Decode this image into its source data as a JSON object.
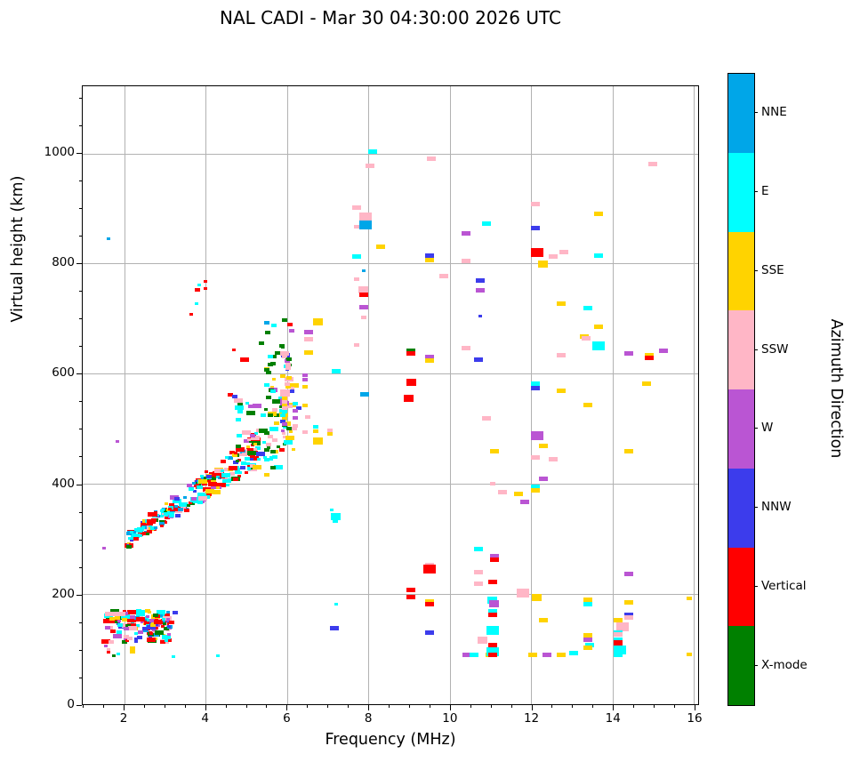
{
  "header": {
    "title": "NAL CADI - Mar 30 04:30:00 2026 UTC"
  },
  "chart_data": {
    "type": "scatter",
    "title": "NAL CADI - Mar 30 04:30:00 2026 UTC",
    "xlabel": "Frequency (MHz)",
    "ylabel": "Virtual height (km)",
    "xlim": [
      0.975,
      16.11
    ],
    "ylim": [
      0,
      1122
    ],
    "x_major_ticks": [
      2,
      4,
      6,
      8,
      10,
      12,
      14,
      16
    ],
    "x_minor_step": 0.5,
    "y_major_ticks": [
      0,
      200,
      400,
      600,
      800,
      1000
    ],
    "y_minor_step": 50,
    "grid": true,
    "grid_color": "#b2b2b2",
    "legend_position": "right-colorbar",
    "colorbar": {
      "title": "Azimuth Direction",
      "labels": [
        "NNE",
        "E",
        "SSE",
        "SSW",
        "W",
        "NNW",
        "Vertical",
        "X-mode"
      ],
      "colors": [
        "#00A6E8",
        "#00FFFF",
        "#FFD300",
        "#FFB6C6",
        "#BA55D3",
        "#3C3CEC",
        "#FF0000",
        "#008000"
      ]
    },
    "categories": [
      "NNE",
      "E",
      "SSE",
      "SSW",
      "W",
      "NNW",
      "Vertical",
      "X-mode"
    ],
    "colors": [
      "#00A6E8",
      "#00FFFF",
      "#FFD300",
      "#FFB6C6",
      "#BA55D3",
      "#3C3CEC",
      "#FF0000",
      "#008000"
    ],
    "point_sizes": {
      "1": [
        4,
        3
      ],
      "2": [
        6,
        4
      ],
      "3": [
        10,
        5
      ],
      "4": [
        11,
        8
      ],
      "5": [
        14,
        10
      ]
    },
    "points": [
      [
        1.5,
        284,
        4,
        1
      ],
      [
        1.55,
        105,
        4,
        1
      ],
      [
        1.6,
        845,
        0,
        1
      ],
      [
        1.62,
        100,
        3,
        1
      ],
      [
        1.62,
        95,
        6,
        1
      ],
      [
        1.73,
        88,
        7,
        1
      ],
      [
        1.83,
        477,
        4,
        1
      ],
      [
        1.85,
        91,
        1,
        1
      ],
      [
        2.2,
        101,
        2,
        2
      ],
      [
        2.2,
        95,
        2,
        2
      ],
      [
        3.2,
        87,
        1,
        1
      ],
      [
        4.3,
        88,
        1,
        1
      ],
      [
        3.64,
        708,
        6,
        1
      ],
      [
        3.78,
        727,
        1,
        1
      ],
      [
        3.8,
        752,
        6,
        2
      ],
      [
        3.83,
        761,
        1,
        1
      ],
      [
        4.0,
        768,
        6,
        1
      ],
      [
        4.0,
        754,
        6,
        1
      ],
      [
        4.6,
        562,
        6,
        2
      ],
      [
        4.72,
        558,
        5,
        2
      ],
      [
        4.7,
        643,
        6,
        1
      ],
      [
        4.95,
        625,
        6,
        3
      ],
      [
        5.38,
        655,
        7,
        2
      ],
      [
        5.5,
        693,
        0,
        2
      ],
      [
        5.68,
        688,
        1,
        2
      ],
      [
        5.95,
        697,
        7,
        2
      ],
      [
        6.08,
        690,
        6,
        2
      ],
      [
        6.75,
        694,
        2,
        4
      ],
      [
        6.12,
        678,
        4,
        2
      ],
      [
        5.52,
        675,
        7,
        2
      ],
      [
        6.52,
        676,
        4,
        3
      ],
      [
        6.52,
        663,
        3,
        3
      ],
      [
        5.9,
        648,
        7,
        1
      ],
      [
        6.52,
        639,
        2,
        3
      ],
      [
        5.6,
        632,
        1,
        2
      ],
      [
        5.95,
        632,
        3,
        2
      ],
      [
        6.03,
        616,
        3,
        2
      ],
      [
        6.03,
        610,
        3,
        2
      ],
      [
        5.65,
        619,
        7,
        2
      ],
      [
        5.5,
        607,
        7,
        2
      ],
      [
        6.05,
        626,
        7,
        2
      ],
      [
        5.6,
        616,
        7,
        2
      ],
      [
        6.45,
        597,
        4,
        2
      ],
      [
        6.45,
        590,
        4,
        2
      ],
      [
        5.9,
        595,
        2,
        2
      ],
      [
        6.05,
        593,
        2,
        2
      ],
      [
        5.5,
        580,
        1,
        2
      ],
      [
        6.45,
        577,
        2,
        2
      ],
      [
        5.95,
        565,
        3,
        4
      ],
      [
        5.55,
        557,
        7,
        2
      ],
      [
        5.95,
        556,
        2,
        2
      ],
      [
        5.95,
        549,
        3,
        2
      ],
      [
        5.95,
        543,
        2,
        2
      ],
      [
        5.95,
        537,
        3,
        2
      ],
      [
        5.95,
        531,
        1,
        2
      ],
      [
        6.45,
        543,
        2,
        2
      ],
      [
        6.28,
        538,
        5,
        2
      ],
      [
        6.2,
        532,
        4,
        2
      ],
      [
        5.6,
        524,
        7,
        2
      ],
      [
        5.9,
        524,
        1,
        2
      ],
      [
        5.95,
        519,
        2,
        2
      ],
      [
        5.9,
        514,
        5,
        2
      ],
      [
        5.95,
        509,
        4,
        2
      ],
      [
        6.5,
        521,
        3,
        2
      ],
      [
        6.7,
        503,
        1,
        2
      ],
      [
        6.7,
        495,
        2,
        2
      ],
      [
        6.05,
        500,
        7,
        2
      ],
      [
        5.9,
        497,
        4,
        1
      ],
      [
        6.45,
        494,
        3,
        2
      ],
      [
        5.5,
        492,
        7,
        2
      ],
      [
        5.6,
        486,
        3,
        2
      ],
      [
        6.75,
        478,
        2,
        4
      ],
      [
        6.05,
        483,
        2,
        2
      ],
      [
        5.55,
        472,
        3,
        2
      ],
      [
        5.5,
        462,
        7,
        2
      ],
      [
        5.65,
        458,
        7,
        2
      ],
      [
        5.5,
        444,
        1,
        2
      ],
      [
        5.65,
        430,
        7,
        2
      ],
      [
        5.5,
        417,
        2,
        2
      ],
      [
        7.05,
        497,
        3,
        2
      ],
      [
        7.05,
        490,
        2,
        2
      ],
      [
        7.1,
        353,
        1,
        1
      ],
      [
        7.2,
        605,
        1,
        3
      ],
      [
        7.2,
        340,
        1,
        4
      ],
      [
        7.18,
        333,
        1,
        2
      ],
      [
        7.2,
        182,
        1,
        1
      ],
      [
        7.1,
        139,
        7,
        1
      ],
      [
        7.17,
        138,
        5,
        3
      ],
      [
        7.72,
        902,
        3,
        3
      ],
      [
        7.72,
        867,
        3,
        2
      ],
      [
        7.72,
        813,
        1,
        3
      ],
      [
        7.72,
        771,
        3,
        2
      ],
      [
        7.72,
        652,
        3,
        2
      ],
      [
        7.88,
        787,
        0,
        1
      ],
      [
        7.88,
        752,
        3,
        4
      ],
      [
        7.88,
        744,
        6,
        3
      ],
      [
        7.88,
        721,
        4,
        3
      ],
      [
        7.88,
        702,
        3,
        2
      ],
      [
        7.9,
        563,
        0,
        3
      ],
      [
        7.92,
        884,
        3,
        5
      ],
      [
        7.92,
        870,
        0,
        5
      ],
      [
        8.05,
        977,
        3,
        3
      ],
      [
        8.1,
        1003,
        1,
        3
      ],
      [
        8.3,
        830,
        2,
        3
      ],
      [
        9.0,
        556,
        6,
        4
      ],
      [
        9.05,
        641,
        7,
        3
      ],
      [
        9.05,
        637,
        6,
        3
      ],
      [
        9.05,
        585,
        6,
        4
      ],
      [
        9.05,
        208,
        6,
        3
      ],
      [
        9.05,
        194,
        6,
        3
      ],
      [
        9.5,
        630,
        4,
        3
      ],
      [
        9.5,
        624,
        2,
        3
      ],
      [
        9.5,
        253,
        3,
        3
      ],
      [
        9.5,
        245,
        6,
        5
      ],
      [
        9.5,
        186,
        2,
        3
      ],
      [
        9.5,
        181,
        6,
        3
      ],
      [
        9.5,
        130,
        5,
        3
      ],
      [
        9.5,
        815,
        5,
        3
      ],
      [
        9.5,
        807,
        2,
        3
      ],
      [
        9.55,
        990,
        3,
        3
      ],
      [
        9.85,
        778,
        3,
        3
      ],
      [
        10.4,
        855,
        4,
        3
      ],
      [
        10.4,
        804,
        3,
        3
      ],
      [
        10.4,
        647,
        3,
        3
      ],
      [
        10.42,
        90,
        4,
        3
      ],
      [
        10.6,
        90,
        1,
        3
      ],
      [
        10.7,
        281,
        1,
        3
      ],
      [
        10.7,
        240,
        3,
        3
      ],
      [
        10.7,
        219,
        3,
        3
      ],
      [
        10.7,
        625,
        5,
        3
      ],
      [
        10.75,
        770,
        5,
        3
      ],
      [
        10.75,
        751,
        4,
        3
      ],
      [
        10.75,
        704,
        5,
        1
      ],
      [
        10.8,
        116,
        3,
        4
      ],
      [
        10.9,
        873,
        1,
        3
      ],
      [
        10.9,
        519,
        3,
        3
      ],
      [
        11.0,
        90,
        2,
        3
      ],
      [
        11.05,
        400,
        3,
        2
      ],
      [
        11.05,
        222,
        6,
        3
      ],
      [
        11.05,
        189,
        1,
        4
      ],
      [
        11.1,
        182,
        4,
        4
      ],
      [
        11.05,
        168,
        1,
        3
      ],
      [
        11.05,
        163,
        6,
        3
      ],
      [
        11.05,
        134,
        1,
        5
      ],
      [
        11.05,
        108,
        6,
        3
      ],
      [
        11.05,
        95,
        1,
        5
      ],
      [
        11.05,
        89,
        6,
        3
      ],
      [
        11.1,
        459,
        2,
        3
      ],
      [
        11.1,
        268,
        4,
        3
      ],
      [
        11.1,
        263,
        6,
        3
      ],
      [
        11.3,
        385,
        3,
        3
      ],
      [
        11.7,
        382,
        2,
        3
      ],
      [
        11.8,
        202,
        3,
        5
      ],
      [
        11.85,
        367,
        4,
        3
      ],
      [
        12.05,
        90,
        2,
        3
      ],
      [
        12.1,
        908,
        3,
        3
      ],
      [
        12.1,
        865,
        5,
        3
      ],
      [
        12.1,
        582,
        1,
        3
      ],
      [
        12.1,
        574,
        5,
        3
      ],
      [
        12.1,
        448,
        3,
        3
      ],
      [
        12.1,
        394,
        1,
        3
      ],
      [
        12.1,
        389,
        2,
        3
      ],
      [
        12.15,
        820,
        6,
        5
      ],
      [
        12.15,
        488,
        4,
        5
      ],
      [
        12.15,
        193,
        2,
        4
      ],
      [
        12.3,
        799,
        2,
        4
      ],
      [
        12.3,
        469,
        2,
        3
      ],
      [
        12.3,
        410,
        4,
        3
      ],
      [
        12.3,
        152,
        2,
        3
      ],
      [
        12.4,
        90,
        4,
        3
      ],
      [
        12.55,
        813,
        3,
        3
      ],
      [
        12.55,
        445,
        3,
        3
      ],
      [
        12.75,
        727,
        2,
        3
      ],
      [
        12.75,
        633,
        3,
        3
      ],
      [
        12.75,
        569,
        2,
        3
      ],
      [
        12.75,
        89,
        2,
        3
      ],
      [
        12.8,
        821,
        3,
        3
      ],
      [
        13.05,
        93,
        1,
        3
      ],
      [
        13.3,
        668,
        2,
        3
      ],
      [
        13.35,
        664,
        3,
        3
      ],
      [
        13.4,
        720,
        1,
        3
      ],
      [
        13.4,
        543,
        2,
        3
      ],
      [
        13.4,
        189,
        2,
        3
      ],
      [
        13.4,
        181,
        1,
        3
      ],
      [
        13.4,
        125,
        2,
        3
      ],
      [
        13.4,
        117,
        4,
        3
      ],
      [
        13.45,
        108,
        1,
        3
      ],
      [
        13.4,
        103,
        2,
        3
      ],
      [
        13.65,
        890,
        2,
        3
      ],
      [
        13.65,
        815,
        1,
        3
      ],
      [
        13.65,
        685,
        2,
        3
      ],
      [
        13.65,
        650,
        1,
        5
      ],
      [
        14.15,
        152,
        2,
        3
      ],
      [
        14.25,
        140,
        3,
        5
      ],
      [
        14.15,
        130,
        1,
        3
      ],
      [
        14.15,
        126,
        3,
        3
      ],
      [
        14.15,
        117,
        1,
        3
      ],
      [
        14.15,
        113,
        6,
        3
      ],
      [
        14.15,
        110,
        6,
        3
      ],
      [
        14.18,
        99,
        1,
        5
      ],
      [
        14.15,
        90,
        1,
        3
      ],
      [
        14.4,
        637,
        4,
        3
      ],
      [
        14.4,
        459,
        2,
        3
      ],
      [
        14.4,
        237,
        4,
        3
      ],
      [
        14.4,
        185,
        2,
        3
      ],
      [
        14.4,
        163,
        5,
        3
      ],
      [
        14.4,
        158,
        3,
        3
      ],
      [
        14.85,
        582,
        2,
        3
      ],
      [
        14.9,
        633,
        2,
        3
      ],
      [
        14.9,
        629,
        6,
        3
      ],
      [
        15.0,
        980,
        3,
        3
      ],
      [
        15.25,
        641,
        4,
        3
      ],
      [
        15.9,
        192,
        2,
        2
      ],
      [
        15.9,
        90,
        2,
        2
      ]
    ],
    "synth_clusters": [
      {
        "name": "f-trace-band",
        "count": 235,
        "f": [
          2.08,
          5.25
        ],
        "band": {
          "a": 189,
          "b": 52,
          "t0": 13,
          "t1": 32
        },
        "weights": [
          0.06,
          0.27,
          0.1,
          0.12,
          0.04,
          0.04,
          0.32,
          0.05
        ]
      },
      {
        "name": "f-trace-upper-fringe",
        "count": 55,
        "f": [
          4.75,
          5.95
        ],
        "h": [
          430,
          560
        ],
        "weights": [
          0.03,
          0.22,
          0.16,
          0.13,
          0.06,
          0.05,
          0.06,
          0.29
        ]
      },
      {
        "name": "f-trace-top",
        "count": 16,
        "f": [
          5.45,
          6.05
        ],
        "h": [
          555,
          655
        ],
        "weights": [
          0.02,
          0.15,
          0.25,
          0.2,
          0.1,
          0.02,
          0.01,
          0.25
        ]
      },
      {
        "name": "six-mhz-column",
        "count": 30,
        "f": [
          5.88,
          6.2
        ],
        "h": [
          450,
          628
        ],
        "weights": [
          0.02,
          0.14,
          0.28,
          0.22,
          0.12,
          0.08,
          0.05,
          0.09
        ]
      },
      {
        "name": "e-region-core",
        "count": 125,
        "f": [
          1.55,
          3.12
        ],
        "h": [
          113,
          170
        ],
        "weights": [
          0.09,
          0.17,
          0.15,
          0.13,
          0.11,
          0.08,
          0.2,
          0.07
        ]
      },
      {
        "name": "e-region-right",
        "count": 22,
        "f": [
          2.55,
          3.3
        ],
        "h": [
          136,
          166
        ],
        "weights": [
          0.05,
          0.15,
          0.13,
          0.15,
          0.22,
          0.12,
          0.13,
          0.05
        ]
      }
    ]
  }
}
